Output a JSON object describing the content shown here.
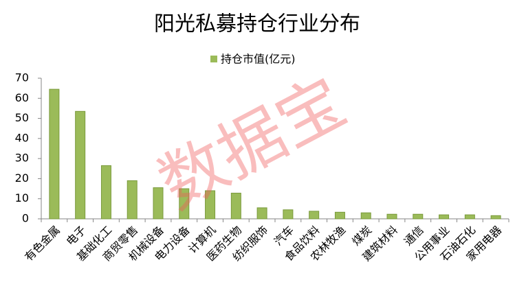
{
  "chart_data": {
    "type": "bar",
    "title": "阳光私募持仓行业分布",
    "watermark": "数据宝",
    "categories": [
      "有色金属",
      "电子",
      "基础化工",
      "商贸零售",
      "机械设备",
      "电力设备",
      "计算机",
      "医药生物",
      "纺织服饰",
      "汽车",
      "食品饮料",
      "农林牧渔",
      "煤炭",
      "建筑材料",
      "通信",
      "公用事业",
      "石油石化",
      "家用电器"
    ],
    "series": [
      {
        "name": "持仓市值(亿元)",
        "color": "#9bbb59",
        "values": [
          64.5,
          53.5,
          26.5,
          19,
          15.5,
          15,
          14,
          12.8,
          5.5,
          4.5,
          3.8,
          3.3,
          3.0,
          2.3,
          2.3,
          2.0,
          2.0,
          1.6
        ]
      }
    ],
    "ylim": [
      0,
      70
    ],
    "yticks": [
      0,
      10,
      20,
      30,
      40,
      50,
      60,
      70
    ],
    "grid": false,
    "legend": "top"
  }
}
